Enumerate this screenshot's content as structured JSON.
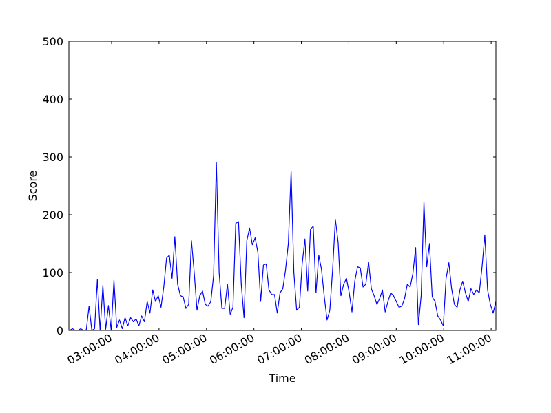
{
  "chart_data": {
    "type": "line",
    "xlabel": "Time",
    "ylabel": "Score",
    "x": [
      127,
      130.5,
      134,
      137.5,
      141,
      144.5,
      148,
      151.5,
      155,
      158.5,
      162,
      165.5,
      169,
      172.5,
      176,
      179.5,
      183,
      186.5,
      190,
      193.5,
      197,
      200.5,
      204,
      207.5,
      211,
      214.5,
      218,
      221.5,
      225,
      228.5,
      232,
      235.5,
      239,
      242.5,
      246,
      249.5,
      253,
      256.5,
      260,
      263.5,
      267,
      270.5,
      274,
      277.5,
      281,
      284.5,
      288,
      291.5,
      295,
      298.5,
      302,
      305.5,
      309,
      312.5,
      316,
      319.5,
      323,
      326.5,
      330,
      333.5,
      337,
      340.5,
      344,
      347.5,
      351,
      354.5,
      358,
      361.5,
      365,
      368.5,
      372,
      375.5,
      379,
      382.5,
      386,
      389.5,
      393,
      396.5,
      400,
      403.5,
      407,
      410.5,
      414,
      417.5,
      421,
      424.5,
      428,
      431.5,
      435,
      438.5,
      442,
      445.5,
      449,
      452.5,
      456,
      459.5,
      463,
      466.5,
      470,
      473.5,
      477,
      480.5,
      484,
      487.5,
      491,
      494.5,
      498,
      501.5,
      505,
      508.5,
      512,
      515.5,
      519,
      522.5,
      526,
      529.5,
      533,
      536.5,
      540,
      543.5,
      547,
      550.5,
      554,
      557.5,
      561,
      564.5,
      568,
      571.5,
      575,
      578.5,
      582,
      585.5,
      589,
      592.5,
      596,
      599.5,
      603,
      606.5,
      610,
      613.5,
      617,
      620.5,
      624,
      627.5,
      631,
      634.5,
      638,
      641.5,
      645,
      648.5,
      652,
      655.5,
      659,
      662.5,
      666
    ],
    "values": [
      0,
      3,
      0,
      0,
      3,
      0,
      1,
      42,
      0,
      3,
      88,
      0,
      78,
      2,
      43,
      0,
      87,
      5,
      18,
      3,
      22,
      8,
      22,
      15,
      20,
      8,
      25,
      15,
      50,
      30,
      70,
      50,
      60,
      40,
      75,
      125,
      130,
      90,
      162,
      80,
      60,
      58,
      38,
      45,
      155,
      100,
      35,
      60,
      68,
      45,
      42,
      50,
      95,
      290,
      100,
      38,
      38,
      80,
      28,
      40,
      185,
      188,
      80,
      22,
      155,
      177,
      148,
      160,
      135,
      50,
      113,
      115,
      70,
      62,
      62,
      30,
      65,
      72,
      105,
      150,
      275,
      100,
      35,
      40,
      115,
      158,
      68,
      175,
      180,
      65,
      130,
      105,
      58,
      18,
      35,
      105,
      192,
      152,
      60,
      80,
      90,
      65,
      32,
      85,
      110,
      108,
      75,
      80,
      118,
      72,
      60,
      45,
      55,
      70,
      32,
      50,
      65,
      60,
      50,
      40,
      42,
      55,
      80,
      75,
      98,
      143,
      10,
      60,
      222,
      110,
      150,
      58,
      50,
      25,
      18,
      8,
      90,
      117,
      72,
      45,
      40,
      70,
      85,
      65,
      50,
      72,
      62,
      70,
      65,
      110,
      165,
      70,
      45,
      30,
      50
    ],
    "color": "#0000ff",
    "xlim": [
      126,
      666
    ],
    "xticks": [
      {
        "value": 180,
        "label": "03:00:00"
      },
      {
        "value": 240,
        "label": "04:00:00"
      },
      {
        "value": 300,
        "label": "05:00:00"
      },
      {
        "value": 360,
        "label": "06:00:00"
      },
      {
        "value": 420,
        "label": "07:00:00"
      },
      {
        "value": 480,
        "label": "08:00:00"
      },
      {
        "value": 540,
        "label": "09:00:00"
      },
      {
        "value": 600,
        "label": "10:00:00"
      },
      {
        "value": 660,
        "label": "11:00:00"
      }
    ],
    "ylim": [
      0,
      500
    ],
    "yticks": [
      0,
      100,
      200,
      300,
      400,
      500
    ],
    "grid": false
  }
}
